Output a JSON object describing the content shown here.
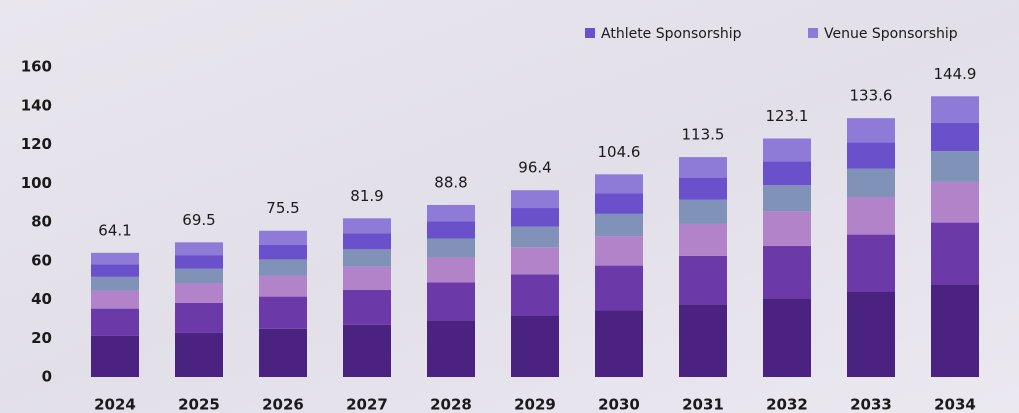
{
  "chart_data": {
    "type": "stacked-bar",
    "categories": [
      "2024",
      "2025",
      "2026",
      "2027",
      "2028",
      "2029",
      "2030",
      "2031",
      "2032",
      "2033",
      "2034"
    ],
    "totals": [
      64.1,
      69.5,
      75.5,
      81.9,
      88.8,
      96.4,
      104.6,
      113.5,
      123.1,
      133.6,
      144.9
    ],
    "series": [
      {
        "color": "#4b2280",
        "values": [
          21.2,
          22.9,
          24.9,
          27.0,
          29.3,
          31.8,
          34.5,
          37.5,
          40.6,
          44.1,
          47.8
        ]
      },
      {
        "color": "#6b3aa8",
        "values": [
          14.1,
          15.3,
          16.6,
          18.0,
          19.5,
          21.2,
          23.0,
          25.0,
          27.1,
          29.4,
          31.9
        ]
      },
      {
        "color": "#b283c9",
        "values": [
          9.3,
          10.1,
          10.9,
          11.9,
          12.9,
          14.0,
          15.2,
          16.5,
          17.8,
          19.4,
          21.0
        ]
      },
      {
        "color": "#8192b9",
        "values": [
          7.1,
          7.6,
          8.3,
          9.0,
          9.8,
          10.6,
          11.5,
          12.5,
          13.5,
          14.7,
          15.9
        ]
      },
      {
        "name": "Athlete Sponsorship",
        "color": "#6a51cb",
        "values": [
          6.4,
          7.0,
          7.6,
          8.2,
          8.9,
          9.6,
          10.5,
          11.4,
          12.3,
          13.4,
          14.5
        ]
      },
      {
        "name": "Venue Sponsorship",
        "color": "#8e7bd8",
        "values": [
          6.0,
          6.6,
          7.2,
          7.8,
          8.4,
          9.2,
          9.9,
          10.6,
          11.8,
          12.6,
          13.8
        ]
      }
    ],
    "ylim": [
      0,
      160
    ],
    "yticks": [
      0,
      20,
      40,
      60,
      80,
      100,
      120,
      140,
      160
    ],
    "grid": false
  }
}
